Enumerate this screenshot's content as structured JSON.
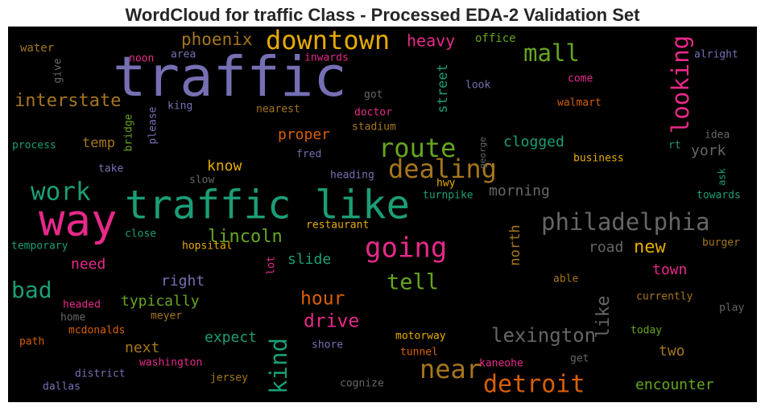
{
  "chart_data": {
    "type": "wordcloud",
    "title": "WordCloud for traffic Class - Processed EDA-2 Validation Set",
    "background": "#000000",
    "words": [
      {
        "text": "traffic",
        "color": "#7570b3"
      },
      {
        "text": "traffic like",
        "color": "#1b9e77"
      },
      {
        "text": "way",
        "color": "#e7298a"
      },
      {
        "text": "downtown",
        "color": "#e6ab02"
      },
      {
        "text": "mall",
        "color": "#66a61e"
      },
      {
        "text": "looking",
        "color": "#e7298a"
      },
      {
        "text": "phoenix",
        "color": "#a6761d"
      },
      {
        "text": "heavy",
        "color": "#e7298a"
      },
      {
        "text": "office",
        "color": "#66a61e"
      },
      {
        "text": "water",
        "color": "#a6761d"
      },
      {
        "text": "give",
        "color": "#666666"
      },
      {
        "text": "noon",
        "color": "#e7298a"
      },
      {
        "text": "area",
        "color": "#7570b3"
      },
      {
        "text": "inwards",
        "color": "#e7298a"
      },
      {
        "text": "alright",
        "color": "#7570b3"
      },
      {
        "text": "interstate",
        "color": "#a6761d"
      },
      {
        "text": "king",
        "color": "#7570b3"
      },
      {
        "text": "nearest",
        "color": "#a6761d"
      },
      {
        "text": "got",
        "color": "#666666"
      },
      {
        "text": "doctor",
        "color": "#e7298a"
      },
      {
        "text": "stadium",
        "color": "#a6761d"
      },
      {
        "text": "street",
        "color": "#1b9e77"
      },
      {
        "text": "look",
        "color": "#7570b3"
      },
      {
        "text": "come",
        "color": "#e7298a"
      },
      {
        "text": "walmart",
        "color": "#d95f02"
      },
      {
        "text": "bridge",
        "color": "#66a61e"
      },
      {
        "text": "please",
        "color": "#7570b3"
      },
      {
        "text": "process",
        "color": "#1b9e77"
      },
      {
        "text": "temp",
        "color": "#a6761d"
      },
      {
        "text": "proper",
        "color": "#d95f02"
      },
      {
        "text": "fred",
        "color": "#7570b3"
      },
      {
        "text": "route",
        "color": "#66a61e"
      },
      {
        "text": "dealing",
        "color": "#a6761d"
      },
      {
        "text": "clogged",
        "color": "#1b9e77"
      },
      {
        "text": "george",
        "color": "#666666"
      },
      {
        "text": "idea",
        "color": "#666666"
      },
      {
        "text": "rt",
        "color": "#1b9e77"
      },
      {
        "text": "york",
        "color": "#666666"
      },
      {
        "text": "business",
        "color": "#e6ab02"
      },
      {
        "text": "take",
        "color": "#7570b3"
      },
      {
        "text": "slow",
        "color": "#666666"
      },
      {
        "text": "know",
        "color": "#e6ab02"
      },
      {
        "text": "heading",
        "color": "#7570b3"
      },
      {
        "text": "hwy",
        "color": "#e6ab02"
      },
      {
        "text": "turnpike",
        "color": "#1b9e77"
      },
      {
        "text": "morning",
        "color": "#666666"
      },
      {
        "text": "ask",
        "color": "#1b9e77"
      },
      {
        "text": "towards",
        "color": "#1b9e77"
      },
      {
        "text": "work",
        "color": "#1b9e77"
      },
      {
        "text": "philadelphia",
        "color": "#666666"
      },
      {
        "text": "restaurant",
        "color": "#e6ab02"
      },
      {
        "text": "close",
        "color": "#1b9e77"
      },
      {
        "text": "lincoln",
        "color": "#66a61e"
      },
      {
        "text": "going",
        "color": "#e7298a"
      },
      {
        "text": "north",
        "color": "#a6761d"
      },
      {
        "text": "temporary",
        "color": "#1b9e77"
      },
      {
        "text": "hopsital",
        "color": "#e6ab02"
      },
      {
        "text": "lot",
        "color": "#e7298a"
      },
      {
        "text": "slide",
        "color": "#1b9e77"
      },
      {
        "text": "road",
        "color": "#666666"
      },
      {
        "text": "new",
        "color": "#e6ab02"
      },
      {
        "text": "burger",
        "color": "#a6761d"
      },
      {
        "text": "need",
        "color": "#e7298a"
      },
      {
        "text": "town",
        "color": "#e7298a"
      },
      {
        "text": "bad",
        "color": "#1b9e77"
      },
      {
        "text": "right",
        "color": "#7570b3"
      },
      {
        "text": "tell",
        "color": "#66a61e"
      },
      {
        "text": "able",
        "color": "#a6761d"
      },
      {
        "text": "typically",
        "color": "#66a61e"
      },
      {
        "text": "hour",
        "color": "#d95f02"
      },
      {
        "text": "like",
        "color": "#666666"
      },
      {
        "text": "currently",
        "color": "#a6761d"
      },
      {
        "text": "headed",
        "color": "#e7298a"
      },
      {
        "text": "home",
        "color": "#666666"
      },
      {
        "text": "meyer",
        "color": "#a6761d"
      },
      {
        "text": "drive",
        "color": "#e7298a"
      },
      {
        "text": "play",
        "color": "#666666"
      },
      {
        "text": "mcdonalds",
        "color": "#d95f02"
      },
      {
        "text": "expect",
        "color": "#1b9e77"
      },
      {
        "text": "lexington",
        "color": "#666666"
      },
      {
        "text": "kind",
        "color": "#1b9e77"
      },
      {
        "text": "motorway",
        "color": "#e6ab02"
      },
      {
        "text": "today",
        "color": "#66a61e"
      },
      {
        "text": "path",
        "color": "#d95f02"
      },
      {
        "text": "next",
        "color": "#a6761d"
      },
      {
        "text": "shore",
        "color": "#7570b3"
      },
      {
        "text": "tunnel",
        "color": "#d95f02"
      },
      {
        "text": "two",
        "color": "#a6761d"
      },
      {
        "text": "washington",
        "color": "#e7298a"
      },
      {
        "text": "kaneohe",
        "color": "#e7298a"
      },
      {
        "text": "get",
        "color": "#666666"
      },
      {
        "text": "near",
        "color": "#a6761d"
      },
      {
        "text": "district",
        "color": "#7570b3"
      },
      {
        "text": "jersey",
        "color": "#a6761d"
      },
      {
        "text": "cognize",
        "color": "#666666"
      },
      {
        "text": "dallas",
        "color": "#7570b3"
      },
      {
        "text": "detroit",
        "color": "#d95f02"
      },
      {
        "text": "encounter",
        "color": "#66a61e"
      }
    ]
  }
}
